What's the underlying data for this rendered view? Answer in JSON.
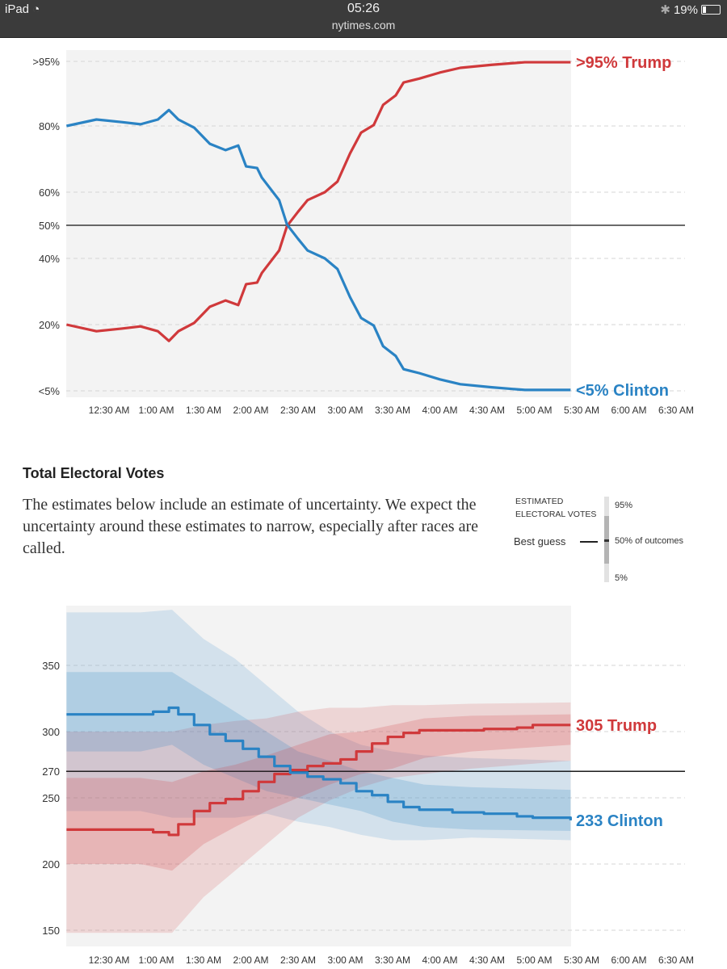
{
  "status_bar": {
    "device": "iPad",
    "time": "05:26",
    "url": "nytimes.com",
    "battery": "19%",
    "battery_level": 0.19
  },
  "colors": {
    "trump": "#d0393b",
    "clinton": "#2a83c4",
    "plot_bg": "#f3f3f3"
  },
  "chart_data": [
    {
      "type": "line",
      "title": "",
      "x_ticks": [
        "12:30 AM",
        "1:00 AM",
        "1:30 AM",
        "2:00 AM",
        "2:30 AM",
        "3:00 AM",
        "3:30 AM",
        "4:00 AM",
        "4:30 AM",
        "5:00 AM",
        "5:30 AM",
        "6:00 AM",
        "6:30 AM"
      ],
      "y_ticks": [
        {
          "value": 5,
          "label": "<5%"
        },
        {
          "value": 20,
          "label": "20%"
        },
        {
          "value": 40,
          "label": "40%"
        },
        {
          "value": 50,
          "label": "50%"
        },
        {
          "value": 60,
          "label": "60%"
        },
        {
          "value": 80,
          "label": "80%"
        },
        {
          "value": 95,
          "label": ">95%"
        }
      ],
      "reference_line": 50,
      "grid": true,
      "x": [
        "0:03",
        "0:22",
        "0:38",
        "0:50",
        "1:01",
        "1:08",
        "1:14",
        "1:24",
        "1:34",
        "1:44",
        "1:52",
        "1:57",
        "2:04",
        "2:07",
        "2:18",
        "2:23",
        "2:30",
        "2:36",
        "2:47",
        "2:55",
        "3:03",
        "3:10",
        "3:18",
        "3:24",
        "3:32",
        "3:37",
        "3:47",
        "4:00",
        "4:13",
        "4:33",
        "4:54",
        "5:23"
      ],
      "series": [
        {
          "name": "Trump",
          "end_label": ">95% Trump",
          "values": [
            20,
            18.5,
            19.1,
            19.6,
            18.5,
            16.3,
            18.5,
            20.5,
            25.4,
            27.3,
            25.9,
            32.2,
            32.7,
            35.6,
            42.4,
            49.8,
            54.1,
            57.6,
            60,
            63.2,
            71.7,
            78,
            80.2,
            84.9,
            87.1,
            90.1,
            91,
            92.4,
            93.5,
            94.2,
            94.8,
            94.8
          ]
        },
        {
          "name": "Clinton",
          "end_label": "<5% Clinton",
          "values": [
            80,
            81.5,
            80.9,
            80.4,
            81.5,
            83.7,
            81.5,
            79.5,
            74.6,
            72.7,
            74.1,
            67.8,
            67.3,
            64.4,
            57.6,
            50.2,
            45.9,
            42.4,
            40,
            36.8,
            28.3,
            22,
            19.8,
            15.1,
            12.9,
            9.9,
            9,
            7.6,
            6.5,
            5.8,
            5.2,
            5.2
          ]
        }
      ]
    },
    {
      "type": "line",
      "title": "Total Electoral Votes",
      "x_ticks": [
        "12:30 AM",
        "1:00 AM",
        "1:30 AM",
        "2:00 AM",
        "2:30 AM",
        "3:00 AM",
        "3:30 AM",
        "4:00 AM",
        "4:30 AM",
        "5:00 AM",
        "5:30 AM",
        "6:00 AM",
        "6:30 AM"
      ],
      "y_ticks": [
        150,
        200,
        250,
        270,
        300,
        350
      ],
      "reference_line": 270,
      "ylim": [
        138,
        395
      ],
      "grid": true,
      "x": [
        "0:03",
        "0:43",
        "0:58",
        "1:08",
        "1:14",
        "1:24",
        "1:34",
        "1:44",
        "1:55",
        "2:05",
        "2:15",
        "2:25",
        "2:36",
        "2:46",
        "2:57",
        "3:07",
        "3:17",
        "3:27",
        "3:37",
        "3:47",
        "4:08",
        "4:28",
        "4:49",
        "4:59",
        "5:23"
      ],
      "series": [
        {
          "name": "Trump",
          "end_label": "305 Trump",
          "values": [
            226,
            226,
            224,
            222,
            230,
            240,
            246,
            249,
            255,
            262,
            268,
            271,
            274,
            276,
            279,
            285,
            291,
            296,
            299,
            301,
            301,
            302,
            303,
            305,
            305
          ]
        },
        {
          "name": "Clinton",
          "end_label": "233 Clinton",
          "values": [
            313,
            313,
            315,
            318,
            313,
            305,
            298,
            293,
            287,
            281,
            274,
            269,
            266,
            264,
            261,
            255,
            252,
            247,
            243,
            241,
            239,
            238,
            236,
            235,
            233
          ]
        }
      ],
      "band_x": [
        "0:03",
        "0:50",
        "1:10",
        "1:30",
        "1:50",
        "2:10",
        "2:30",
        "2:50",
        "3:10",
        "3:30",
        "3:50",
        "4:20",
        "5:23"
      ],
      "bands": [
        {
          "series": "Clinton",
          "range": "90%",
          "hi": [
            390,
            390,
            392,
            370,
            355,
            335,
            315,
            300,
            290,
            285,
            282,
            280,
            278
          ],
          "lo": [
            240,
            240,
            235,
            235,
            235,
            238,
            232,
            228,
            222,
            218,
            218,
            220,
            218
          ]
        },
        {
          "series": "Trump",
          "range": "90%",
          "hi": [
            300,
            300,
            300,
            305,
            308,
            310,
            315,
            318,
            318,
            320,
            320,
            321,
            322
          ],
          "lo": [
            148,
            148,
            148,
            175,
            195,
            215,
            235,
            248,
            258,
            265,
            268,
            272,
            278
          ]
        },
        {
          "series": "Clinton",
          "range": "50%",
          "hi": [
            345,
            345,
            345,
            330,
            315,
            300,
            285,
            278,
            270,
            265,
            260,
            258,
            256
          ],
          "lo": [
            285,
            285,
            290,
            275,
            265,
            255,
            250,
            245,
            240,
            232,
            228,
            226,
            225
          ]
        },
        {
          "series": "Trump",
          "range": "50%",
          "hi": [
            265,
            265,
            262,
            270,
            275,
            282,
            290,
            298,
            300,
            305,
            310,
            312,
            313
          ],
          "lo": [
            200,
            200,
            195,
            215,
            228,
            240,
            250,
            260,
            268,
            272,
            280,
            285,
            290
          ]
        }
      ]
    }
  ],
  "section": {
    "title": "Total Electoral Votes",
    "description": "The estimates below include an estimate of uncertainty. We expect the uncertainty around these estimates to narrow, especially after races are called."
  },
  "legend": {
    "heading_1": "ESTIMATED",
    "heading_2": "ELECTORAL VOTES",
    "best_guess": "Best guess",
    "p95": "95%",
    "p50": "50% of outcomes",
    "p5": "5%"
  }
}
